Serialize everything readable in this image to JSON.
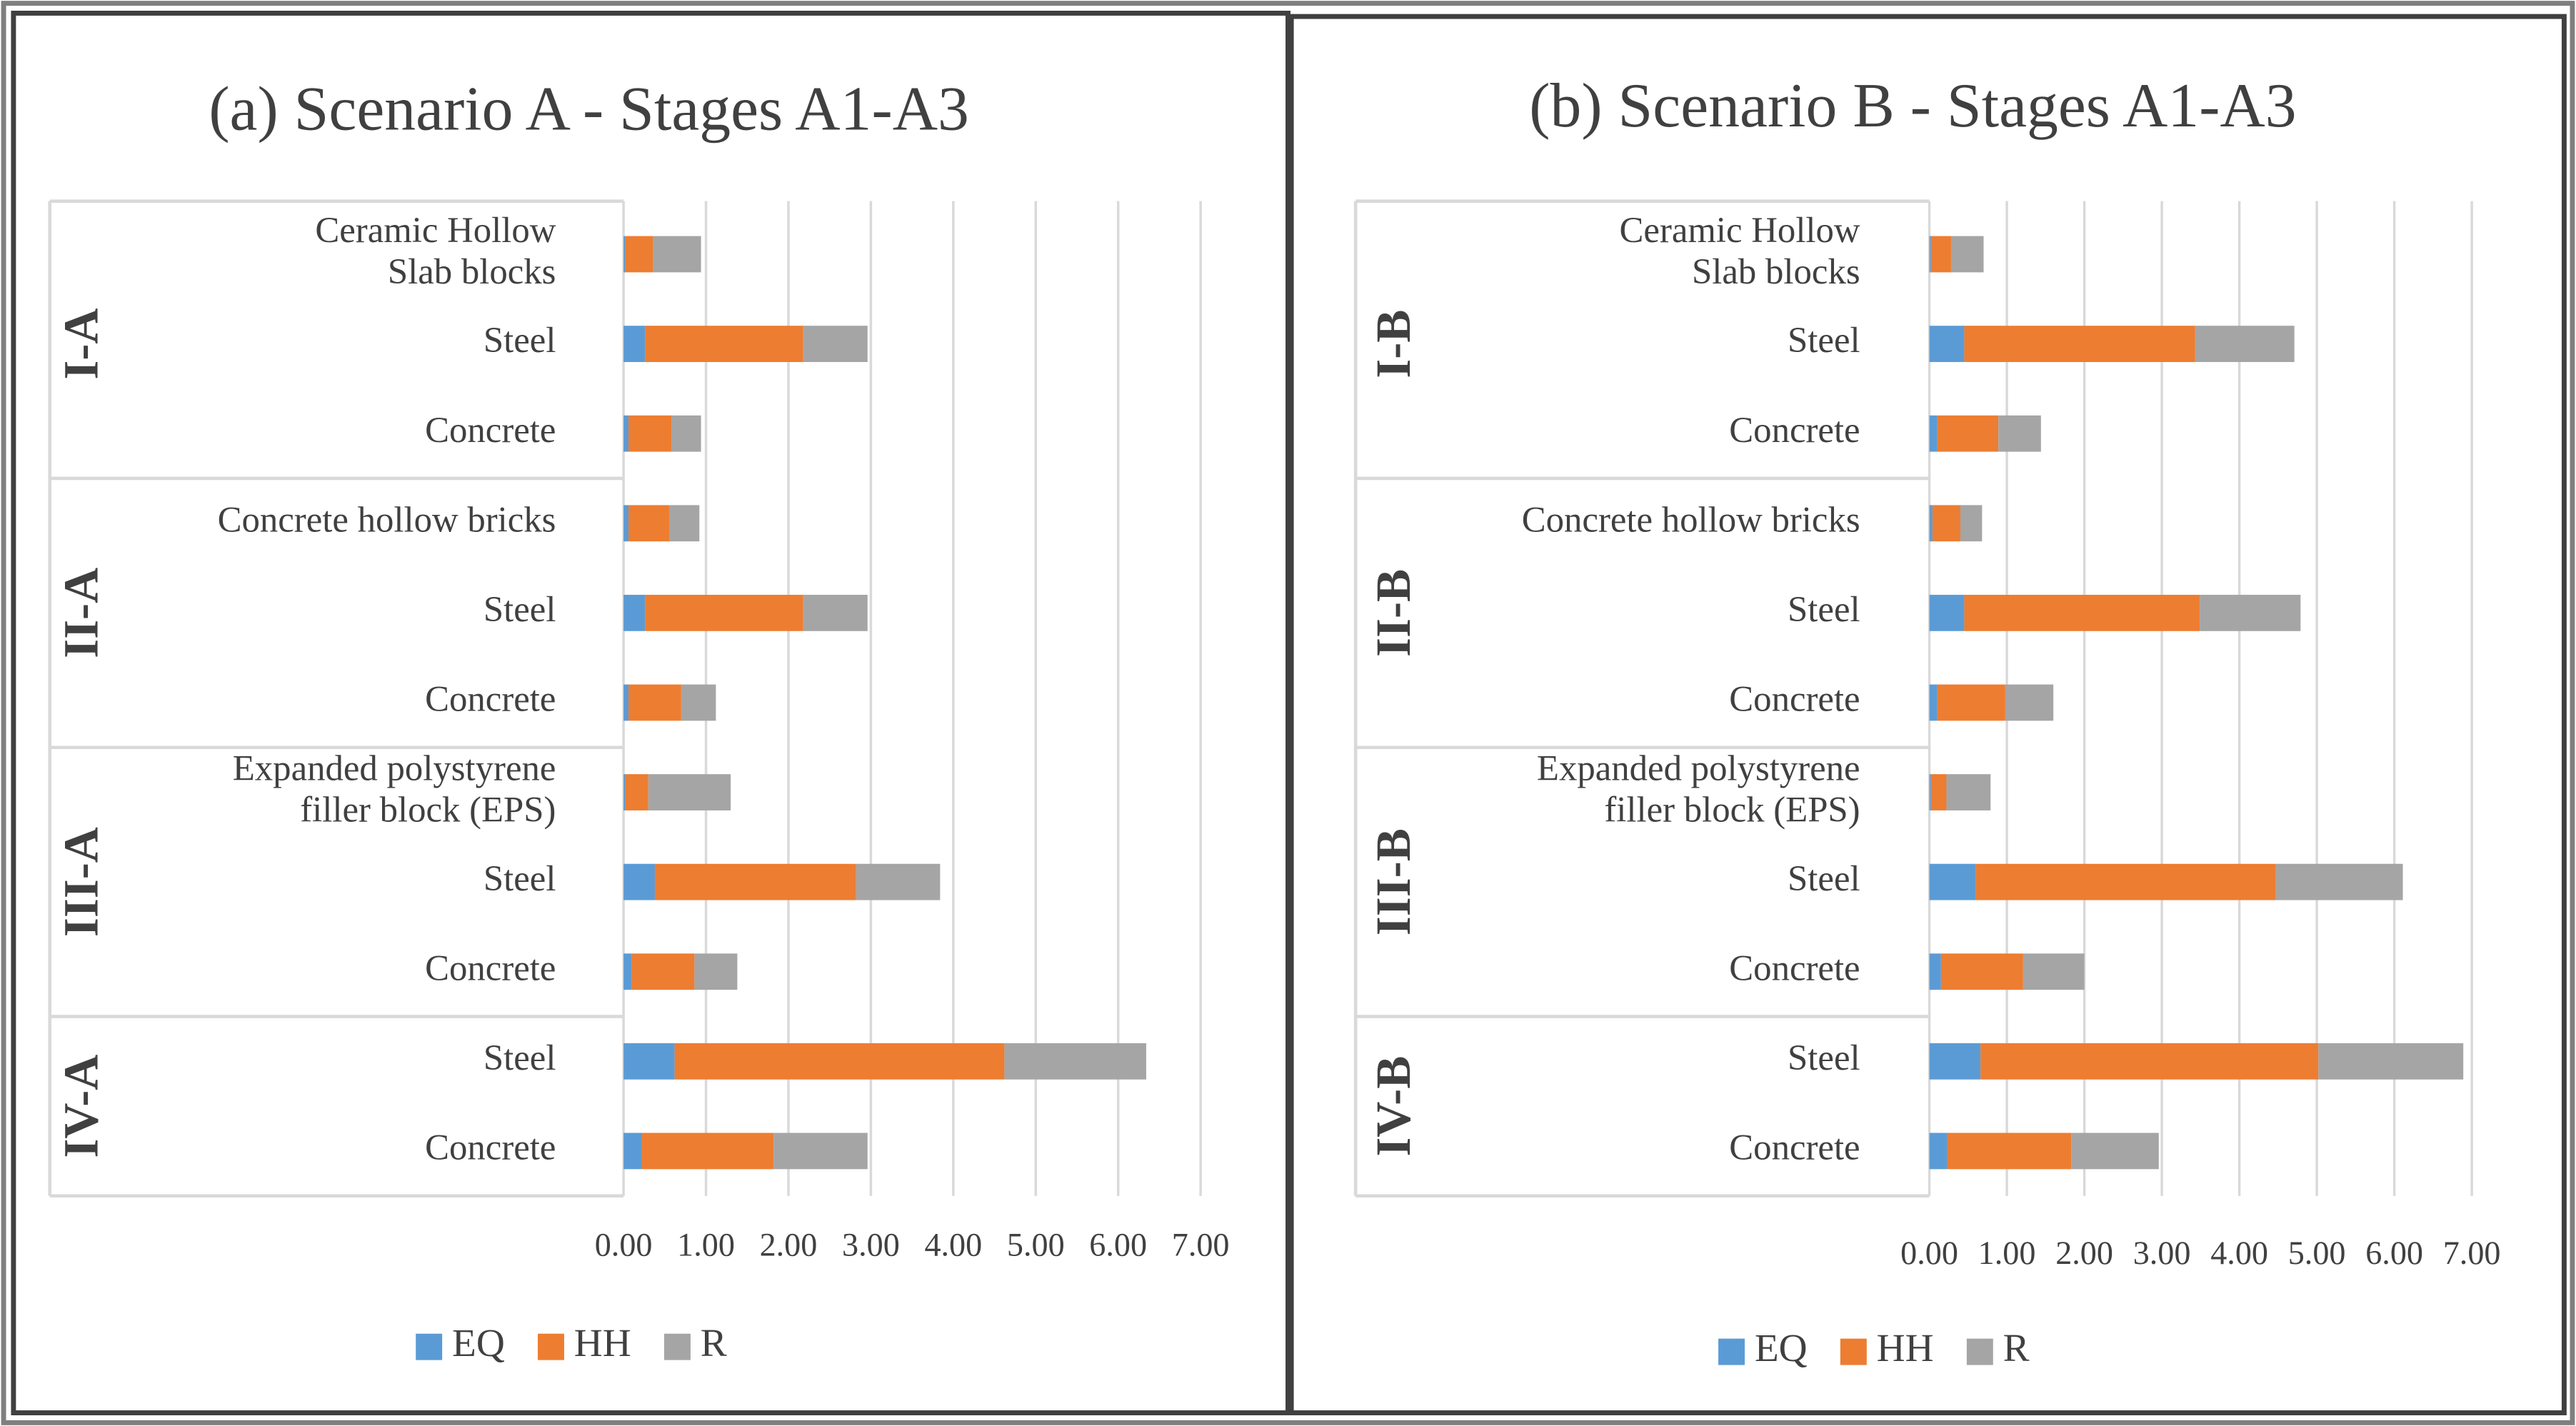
{
  "chart_data": [
    {
      "type": "bar",
      "orientation": "horizontal",
      "stacked": true,
      "title": "(a) Scenario A - Stages A1-A3",
      "groups": [
        {
          "name": "I-A",
          "categories": [
            "Ceramic Hollow\nSlab blocks",
            "Steel",
            "Concrete"
          ]
        },
        {
          "name": "II-A",
          "categories": [
            "Concrete hollow bricks",
            "Steel",
            "Concrete"
          ]
        },
        {
          "name": "III-A",
          "categories": [
            "Expanded polystyrene\nfiller block (EPS)",
            "Steel",
            "Concrete"
          ]
        },
        {
          "name": "IV-A",
          "categories": [
            "Steel",
            "Concrete"
          ]
        }
      ],
      "series": [
        {
          "name": "EQ",
          "color": "#5b9bd5",
          "values": [
            0.02,
            0.26,
            0.06,
            0.06,
            0.26,
            0.06,
            0.02,
            0.38,
            0.1,
            0.62,
            0.22
          ]
        },
        {
          "name": "HH",
          "color": "#ed7d31",
          "values": [
            0.34,
            1.92,
            0.52,
            0.5,
            1.92,
            0.64,
            0.28,
            2.44,
            0.76,
            4.0,
            1.6
          ]
        },
        {
          "name": "R",
          "color": "#a5a5a5",
          "values": [
            0.58,
            0.78,
            0.36,
            0.36,
            0.78,
            0.42,
            1.0,
            1.02,
            0.52,
            1.72,
            1.14
          ]
        }
      ],
      "xlim": [
        0,
        7
      ],
      "xticks": [
        {
          "value": 0,
          "label": "0.00"
        },
        {
          "value": 1,
          "label": "1.00"
        },
        {
          "value": 2,
          "label": "2.00"
        },
        {
          "value": 3,
          "label": "3.00"
        },
        {
          "value": 4,
          "label": "4.00"
        },
        {
          "value": 5,
          "label": "5.00"
        },
        {
          "value": 6,
          "label": "6.00"
        },
        {
          "value": 7,
          "label": "7.00"
        }
      ],
      "grid": true,
      "legend": "bottom"
    },
    {
      "type": "bar",
      "orientation": "horizontal",
      "stacked": true,
      "title": "(b) Scenario B - Stages A1-A3",
      "groups": [
        {
          "name": "I-B",
          "categories": [
            "Ceramic Hollow\nSlab blocks",
            "Steel",
            "Concrete"
          ]
        },
        {
          "name": "II-B",
          "categories": [
            "Concrete hollow bricks",
            "Steel",
            "Concrete"
          ]
        },
        {
          "name": "III-B",
          "categories": [
            "Expanded polystyrene\nfiller block (EPS)",
            "Steel",
            "Concrete"
          ]
        },
        {
          "name": "IV-B",
          "categories": [
            "Steel",
            "Concrete"
          ]
        }
      ],
      "series": [
        {
          "name": "EQ",
          "color": "#5b9bd5",
          "values": [
            0.02,
            0.45,
            0.1,
            0.04,
            0.45,
            0.1,
            0.02,
            0.6,
            0.15,
            0.66,
            0.23
          ]
        },
        {
          "name": "HH",
          "color": "#ed7d31",
          "values": [
            0.26,
            2.98,
            0.79,
            0.36,
            3.04,
            0.88,
            0.2,
            3.87,
            1.06,
            4.36,
            1.6
          ]
        },
        {
          "name": "R",
          "color": "#a5a5a5",
          "values": [
            0.42,
            1.28,
            0.55,
            0.28,
            1.3,
            0.62,
            0.57,
            1.64,
            0.79,
            1.87,
            1.13
          ]
        }
      ],
      "xlim": [
        0,
        7
      ],
      "xticks": [
        {
          "value": 0,
          "label": "0.00"
        },
        {
          "value": 1,
          "label": "1.00"
        },
        {
          "value": 2,
          "label": "2.00"
        },
        {
          "value": 3,
          "label": "3.00"
        },
        {
          "value": 4,
          "label": "4.00"
        },
        {
          "value": 5,
          "label": "5.00"
        },
        {
          "value": 6,
          "label": "6.00"
        },
        {
          "value": 7,
          "label": "7.00"
        }
      ],
      "grid": true,
      "legend": "bottom"
    }
  ]
}
